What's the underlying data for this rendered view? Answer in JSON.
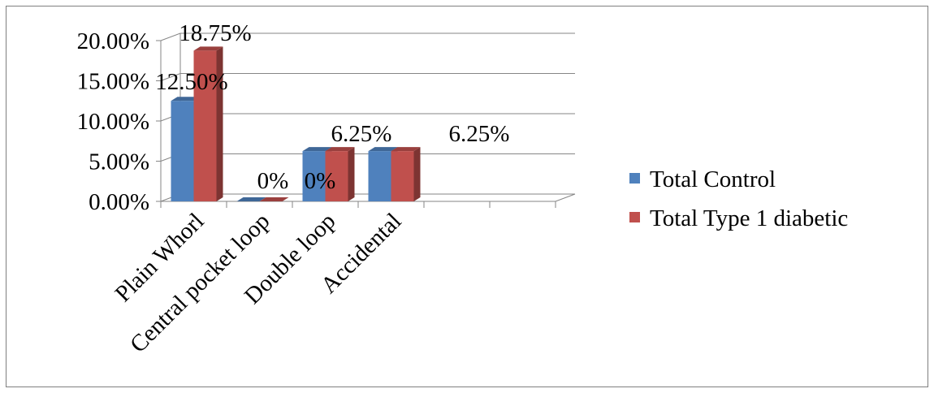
{
  "chart_data": {
    "type": "bar",
    "style": "3d-clustered-column",
    "categories": [
      "Plain Whorl",
      "Central pocket loop",
      "Double loop",
      "Accidental"
    ],
    "series": [
      {
        "name": "Total Control",
        "values": [
          12.5,
          0,
          6.25,
          6.25
        ],
        "color": "#4f81bd"
      },
      {
        "name": "Total Type 1 diabetic",
        "values": [
          18.75,
          0,
          6.25,
          6.25
        ],
        "color": "#c0504d"
      }
    ],
    "data_labels": [
      {
        "series": 0,
        "index": 0,
        "text": "12.50%"
      },
      {
        "series": 1,
        "index": 0,
        "text": "18.75%"
      },
      {
        "series": 0,
        "index": 1,
        "text": "0%"
      },
      {
        "series": 1,
        "index": 1,
        "text": "0%"
      },
      {
        "series": 0,
        "index": 2,
        "text": "6.25%"
      },
      {
        "series": 0,
        "index": 3,
        "text": "6.25%"
      }
    ],
    "y_ticks": [
      "0.00%",
      "5.00%",
      "10.00%",
      "15.00%",
      "20.00%"
    ],
    "ylim": [
      0,
      20
    ],
    "title": "",
    "xlabel": "",
    "ylabel": "",
    "grid": true,
    "legend_position": "right"
  }
}
